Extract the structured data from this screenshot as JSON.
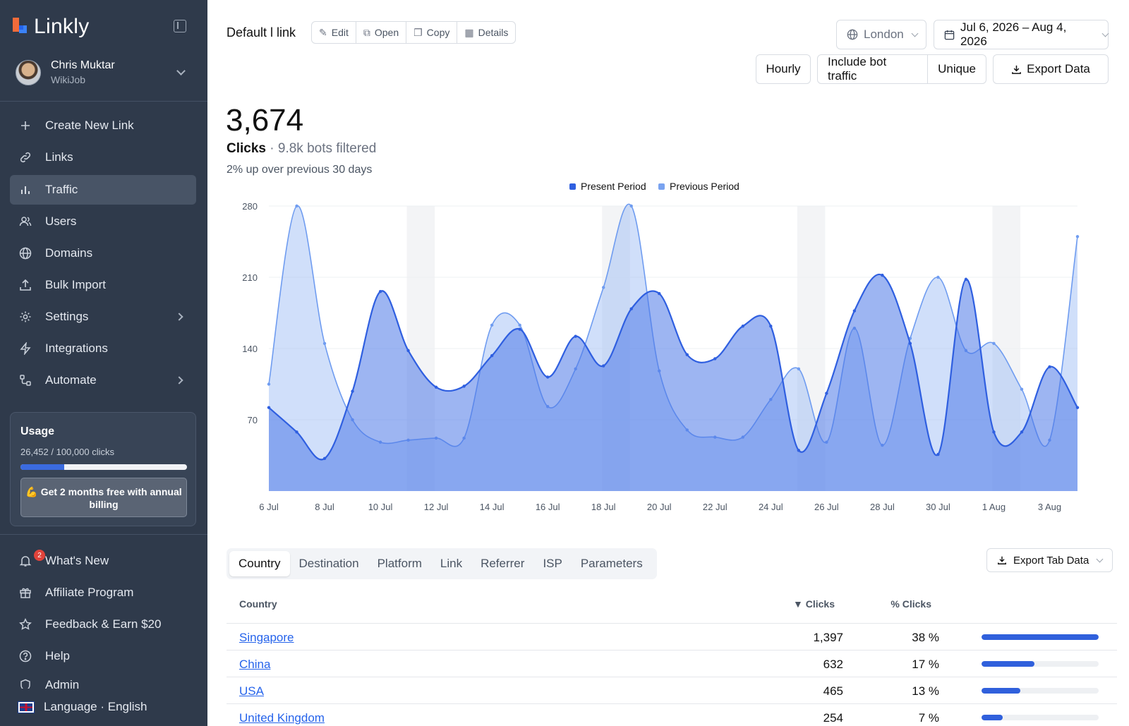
{
  "app": {
    "name": "Linkly"
  },
  "user": {
    "name": "Chris Muktar",
    "org": "WikiJob"
  },
  "nav": {
    "items": [
      {
        "label": "Create New Link",
        "icon": "plus-icon"
      },
      {
        "label": "Links",
        "icon": "link-icon"
      },
      {
        "label": "Traffic",
        "icon": "bar-chart-icon",
        "active": true
      },
      {
        "label": "Users",
        "icon": "users-icon"
      },
      {
        "label": "Domains",
        "icon": "globe-icon"
      },
      {
        "label": "Bulk Import",
        "icon": "upload-icon"
      },
      {
        "label": "Settings",
        "icon": "gear-icon"
      },
      {
        "label": "Integrations",
        "icon": "bolt-icon"
      },
      {
        "label": "Automate",
        "icon": "automate-icon"
      }
    ],
    "bottom": [
      {
        "label": "What's New",
        "icon": "bell-icon",
        "badge": "2"
      },
      {
        "label": "Affiliate Program",
        "icon": "gift-icon"
      },
      {
        "label": "Feedback & Earn $20",
        "icon": "star-icon"
      },
      {
        "label": "Help",
        "icon": "help-icon"
      },
      {
        "label": "Admin",
        "icon": "shield-icon"
      }
    ],
    "language": "Language · English"
  },
  "usage": {
    "title": "Usage",
    "count": "26,452 / 100,000 clicks",
    "fraction": 0.26452,
    "cta": "💪 Get 2 months free with annual billing"
  },
  "header": {
    "link_title": "Default l link",
    "actions": [
      "Edit",
      "Open",
      "Copy",
      "Details"
    ],
    "location": "London",
    "date_range": "Jul 6, 2026 – Aug 4, 2026",
    "hourly": "Hourly",
    "bot_traffic": "Include bot traffic",
    "unique": "Unique",
    "export": "Export Data"
  },
  "summary": {
    "total": "3,674",
    "label": "Clicks",
    "bots": "· 9.8k bots filtered",
    "trend": "2% up over previous 30 days"
  },
  "chart_data": {
    "type": "area",
    "legend_position": "top-center",
    "ylim": [
      0,
      280
    ],
    "yticks": [
      70,
      140,
      210,
      280
    ],
    "x": [
      "6 Jul",
      "7 Jul",
      "8 Jul",
      "9 Jul",
      "10 Jul",
      "11 Jul",
      "12 Jul",
      "13 Jul",
      "14 Jul",
      "15 Jul",
      "16 Jul",
      "17 Jul",
      "18 Jul",
      "19 Jul",
      "20 Jul",
      "21 Jul",
      "22 Jul",
      "23 Jul",
      "24 Jul",
      "25 Jul",
      "26 Jul",
      "27 Jul",
      "28 Jul",
      "29 Jul",
      "30 Jul",
      "31 Jul",
      "1 Aug",
      "2 Aug",
      "3 Aug",
      "4 Aug"
    ],
    "xtick_labels": [
      "6 Jul",
      "8 Jul",
      "10 Jul",
      "12 Jul",
      "14 Jul",
      "16 Jul",
      "18 Jul",
      "20 Jul",
      "22 Jul",
      "24 Jul",
      "26 Jul",
      "28 Jul",
      "30 Jul",
      "1 Aug",
      "3 Aug"
    ],
    "weekend_bands": [
      "11 Jul",
      "18 Jul",
      "25 Jul",
      "1 Aug"
    ],
    "series": [
      {
        "name": "Present Period",
        "color": "#3563e9",
        "values": [
          82,
          58,
          32,
          98,
          196,
          138,
          102,
          103,
          133,
          159,
          112,
          152,
          123,
          179,
          194,
          134,
          130,
          162,
          162,
          40,
          96,
          177,
          212,
          145,
          36,
          208,
          58,
          58,
          122,
          82
        ]
      },
      {
        "name": "Previous Period",
        "color": "#7aa3f0",
        "values": [
          105,
          280,
          145,
          70,
          48,
          50,
          52,
          52,
          163,
          163,
          83,
          120,
          200,
          280,
          118,
          60,
          53,
          53,
          90,
          120,
          48,
          160,
          45,
          150,
          210,
          138,
          145,
          100,
          50,
          250
        ]
      }
    ]
  },
  "tabs": {
    "items": [
      "Country",
      "Destination",
      "Platform",
      "Link",
      "Referrer",
      "ISP",
      "Parameters"
    ],
    "active": "Country",
    "export": "Export Tab Data"
  },
  "table": {
    "headers": {
      "country": "Country",
      "clicks": "▼ Clicks",
      "pct": "% Clicks"
    },
    "rows": [
      {
        "country": "Singapore",
        "clicks": "1,397",
        "pct": "38 %",
        "fraction": 1.0
      },
      {
        "country": "China",
        "clicks": "632",
        "pct": "17 %",
        "fraction": 0.45
      },
      {
        "country": "USA",
        "clicks": "465",
        "pct": "13 %",
        "fraction": 0.33
      },
      {
        "country": "United Kingdom",
        "clicks": "254",
        "pct": "7 %",
        "fraction": 0.18
      }
    ]
  }
}
